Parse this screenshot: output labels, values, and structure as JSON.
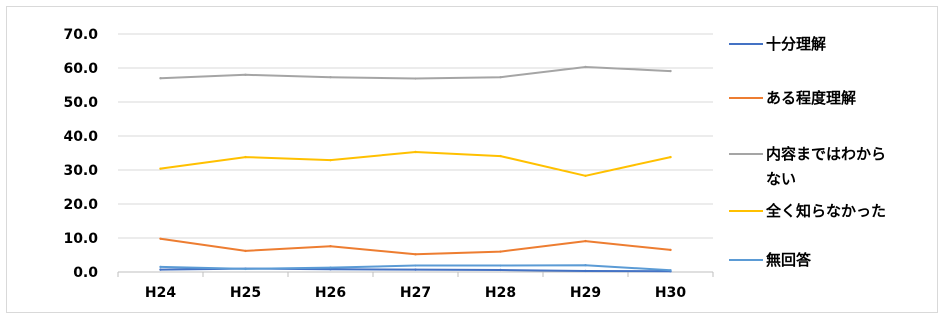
{
  "chart_data": {
    "type": "line",
    "title": "",
    "xlabel": "",
    "ylabel": "",
    "categories": [
      "H24",
      "H25",
      "H26",
      "H27",
      "H28",
      "H29",
      "H30"
    ],
    "ylim": [
      0,
      70
    ],
    "yticks": [
      "0.0",
      "10.0",
      "20.0",
      "30.0",
      "40.0",
      "50.0",
      "60.0",
      "70.0"
    ],
    "grid": true,
    "legend_position": "right",
    "series": [
      {
        "name": "十分理解",
        "color": "#4472c4",
        "values": [
          0.7,
          1.0,
          0.8,
          0.7,
          0.6,
          0.3,
          0.2
        ]
      },
      {
        "name": "ある程度理解",
        "color": "#ed7d31",
        "values": [
          9.8,
          6.2,
          7.6,
          5.2,
          6.0,
          9.1,
          6.5
        ]
      },
      {
        "name": "内容まではわからない",
        "color": "#a5a5a5",
        "values": [
          57.0,
          58.0,
          57.3,
          56.9,
          57.3,
          60.3,
          59.1
        ]
      },
      {
        "name": "全く知らなかった",
        "color": "#ffc000",
        "values": [
          30.4,
          33.8,
          32.9,
          35.3,
          34.1,
          28.3,
          33.8
        ]
      },
      {
        "name": "無回答",
        "color": "#5b9bd5",
        "values": [
          1.5,
          0.9,
          1.3,
          1.9,
          1.9,
          2.0,
          0.5
        ]
      }
    ]
  }
}
